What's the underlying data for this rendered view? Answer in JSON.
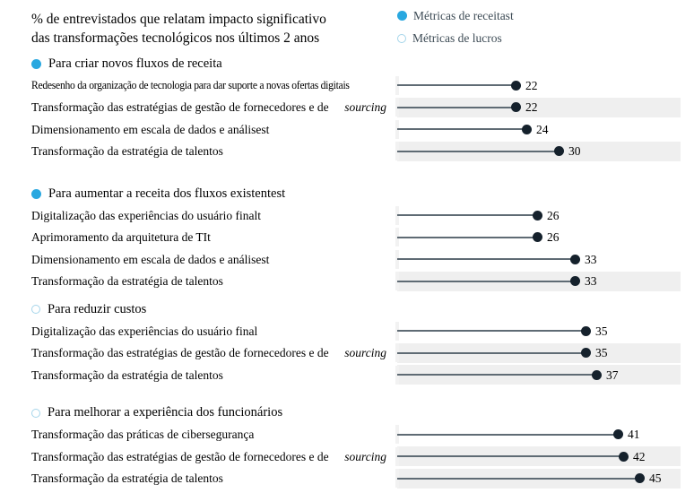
{
  "title": {
    "line1": "% de entrevistados que relatam impacto significativo",
    "line2": "das transformações tecnológicos nos últimos 2 anos"
  },
  "legend": {
    "items": [
      {
        "label": "Métricas de receitast",
        "style": "filled"
      },
      {
        "label": "Métricas de lucros",
        "style": "hollow"
      }
    ]
  },
  "colors": {
    "accent_blue": "#29a8e0",
    "accent_blue_light": "#a5d5ea",
    "dot_dark": "#15212c",
    "line_gray": "#5f6b74",
    "band_gray": "#efefef",
    "legend_text": "#3d4b55"
  },
  "chart_data": {
    "type": "bar",
    "variant": "horizontal-lollipop",
    "title": "% de entrevistados que relatam impacto significativo das transformações tecnológicos nos últimos 2 anos",
    "xlim": [
      0,
      52
    ],
    "grid": false,
    "legend_entries": [
      "Métricas de receitast",
      "Métricas de lucros"
    ],
    "value_labels_shown": true,
    "groups": [
      {
        "name": "Para criar novos fluxos de receita",
        "bullet": "filled",
        "rows": [
          {
            "label": "Redesenho da organização de tecnologia para dar suporte a novas ofertas digitais",
            "value": 22,
            "shaded": false,
            "condensed": true
          },
          {
            "label": "Transformação das estratégias de gestão de fornecedores e de",
            "italic_suffix": "sourcing",
            "value": 22,
            "shaded": true
          },
          {
            "label": "Dimensionamento em escala de dados e análisest",
            "value": 24,
            "shaded": false
          },
          {
            "label": "Transformação da estratégia de talentos",
            "value": 30,
            "shaded": true
          }
        ]
      },
      {
        "name": "Para aumentar a receita dos fluxos existentest",
        "bullet": "filled",
        "rows": [
          {
            "label": "Digitalização das experiências do usuário finalt",
            "value": 26,
            "shaded": false
          },
          {
            "label": "Aprimoramento da arquitetura de TIt",
            "value": 26,
            "shaded": false
          },
          {
            "label": "Dimensionamento em escala de dados e análisest",
            "value": 33,
            "shaded": false
          },
          {
            "label": "Transformação da estratégia de talentos",
            "value": 33,
            "shaded": true
          }
        ]
      },
      {
        "name": "Para reduzir custos",
        "bullet": "hollow",
        "rows": [
          {
            "label": "Digitalização das experiências do usuário final",
            "value": 35,
            "shaded": false
          },
          {
            "label": "Transformação das estratégias de gestão de fornecedores e de",
            "italic_suffix": "sourcing",
            "value": 35,
            "shaded": true
          },
          {
            "label": "Transformação da estratégia de talentos",
            "value": 37,
            "shaded": true
          }
        ]
      },
      {
        "name": "Para melhorar a experiência dos funcionários",
        "bullet": "hollow",
        "rows": [
          {
            "label": "Transformação das práticas de cibersegurança",
            "value": 41,
            "shaded": false
          },
          {
            "label": "Transformação das estratégias de gestão de fornecedores e de",
            "italic_suffix": "sourcing",
            "value": 42,
            "shaded": true
          },
          {
            "label": "Transformação da estratégia de talentos",
            "value": 45,
            "shaded": true
          }
        ]
      }
    ]
  }
}
